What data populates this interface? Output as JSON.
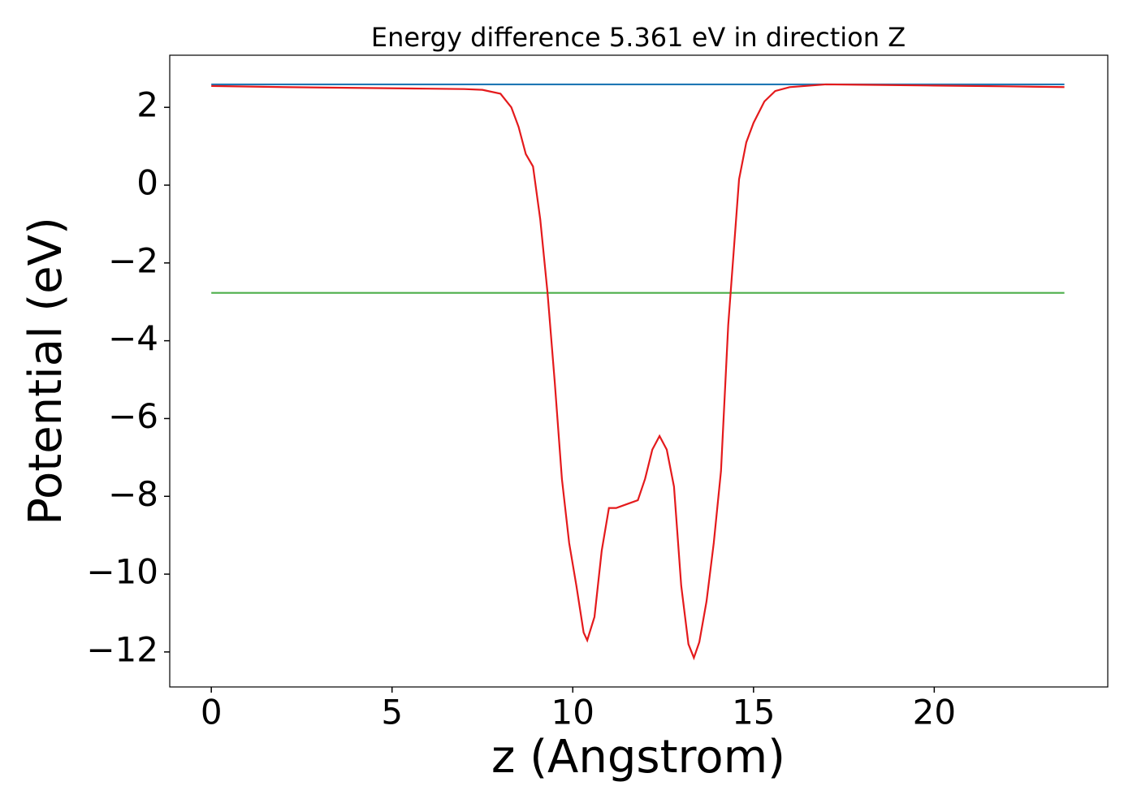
{
  "chart_data": {
    "type": "line",
    "title": "Energy difference 5.361 eV in direction Z",
    "x_label": "z (Angstrom)",
    "y_label": "Potential (eV)",
    "xlim": [
      -1.15,
      24.8
    ],
    "ylim": [
      -12.9,
      3.34
    ],
    "xticks": [
      0,
      5,
      10,
      15,
      20
    ],
    "yticks": [
      2,
      0,
      {
        "value": -2,
        "label": "−2"
      },
      {
        "value": -4,
        "label": "−4"
      },
      {
        "value": -6,
        "label": "−6"
      },
      {
        "value": -8,
        "label": "−8"
      },
      {
        "value": -10,
        "label": "−10"
      },
      {
        "value": -12,
        "label": "−12"
      }
    ],
    "series": [
      {
        "color": "#1f77b4",
        "x": [
          0,
          23.6
        ],
        "values": [
          2.59,
          2.59
        ]
      },
      {
        "color": "#4daf4a",
        "x": [
          0,
          23.6
        ],
        "values": [
          -2.77,
          -2.77
        ]
      },
      {
        "color": "#e41a1c",
        "x": [
          0,
          2,
          4,
          6,
          7,
          7.5,
          8,
          8.3,
          8.5,
          8.7,
          8.9,
          9.1,
          9.3,
          9.5,
          9.7,
          9.9,
          10.1,
          10.3,
          10.4,
          10.6,
          10.8,
          11.0,
          11.2,
          11.5,
          11.8,
          12.0,
          12.2,
          12.4,
          12.6,
          12.8,
          13.0,
          13.2,
          13.35,
          13.5,
          13.7,
          13.9,
          14.1,
          14.3,
          14.4,
          14.6,
          14.8,
          15.0,
          15.3,
          15.6,
          16,
          17,
          18,
          20,
          22,
          23.6
        ],
        "values": [
          2.55,
          2.52,
          2.5,
          2.48,
          2.47,
          2.45,
          2.35,
          2.0,
          1.5,
          0.8,
          0.48,
          -0.88,
          -2.75,
          -5.05,
          -7.56,
          -9.2,
          -10.3,
          -11.5,
          -11.7,
          -11.1,
          -9.4,
          -8.3,
          -8.3,
          -8.2,
          -8.1,
          -7.55,
          -6.8,
          -6.45,
          -6.8,
          -7.75,
          -10.3,
          -11.8,
          -12.15,
          -11.75,
          -10.7,
          -9.2,
          -7.35,
          -3.6,
          -2.35,
          0.15,
          1.1,
          1.6,
          2.15,
          2.42,
          2.52,
          2.59,
          2.58,
          2.56,
          2.54,
          2.52
        ]
      }
    ]
  }
}
